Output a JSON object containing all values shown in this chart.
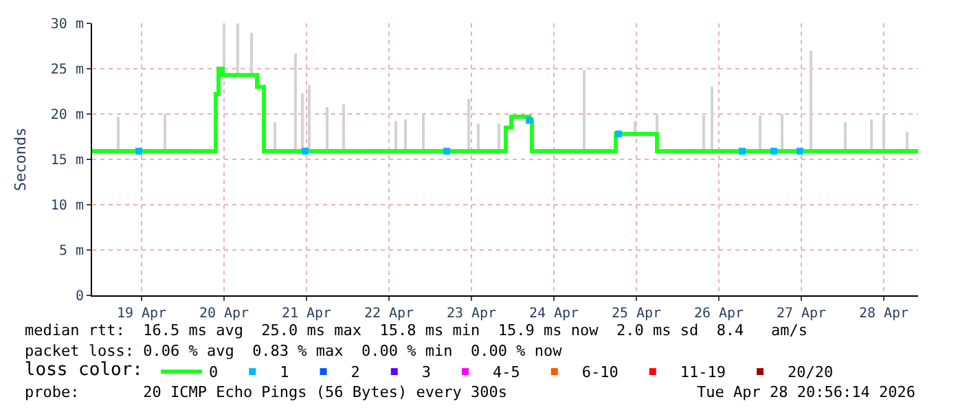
{
  "chart_data": {
    "type": "step",
    "ylabel": "Seconds",
    "legend_title": "loss color:",
    "legend": "bottom",
    "grid": true,
    "line_style": "solid",
    "marker": "none",
    "xlim": [
      "2026-04-18T21:36",
      "2026-04-28T22:00"
    ],
    "xticks": [
      {
        "value": "2026-04-19T12:00",
        "label": "19 Apr"
      },
      {
        "value": "2026-04-20T12:00",
        "label": "20 Apr"
      },
      {
        "value": "2026-04-21T12:00",
        "label": "21 Apr"
      },
      {
        "value": "2026-04-22T12:00",
        "label": "22 Apr"
      },
      {
        "value": "2026-04-23T12:00",
        "label": "23 Apr"
      },
      {
        "value": "2026-04-24T12:00",
        "label": "24 Apr"
      },
      {
        "value": "2026-04-25T12:00",
        "label": "25 Apr"
      },
      {
        "value": "2026-04-26T12:00",
        "label": "26 Apr"
      },
      {
        "value": "2026-04-27T12:00",
        "label": "27 Apr"
      },
      {
        "value": "2026-04-28T12:00",
        "label": "28 Apr"
      }
    ],
    "ylim": [
      0,
      30
    ],
    "yticks": [
      0,
      {
        "value": 5,
        "label": "5 m"
      },
      {
        "value": 10,
        "label": "10 m"
      },
      {
        "value": 15,
        "label": "15 m"
      },
      {
        "value": 20,
        "label": "20 m"
      },
      {
        "value": 25,
        "label": "25 m"
      },
      {
        "value": 30,
        "label": "30 m"
      }
    ],
    "series": [
      {
        "type": "bar",
        "color": "#d3d3d3",
        "x": [
          "2026-04-19T05:12",
          "2026-04-19T18:48",
          "2026-04-20T12:00",
          "2026-04-20T16:00",
          "2026-04-20T20:00",
          "2026-04-21T02:48",
          "2026-04-21T08:48",
          "2026-04-21T10:48",
          "2026-04-21T12:48",
          "2026-04-21T18:00",
          "2026-04-21T22:48",
          "2026-04-22T14:00",
          "2026-04-22T16:48",
          "2026-04-22T22:00",
          "2026-04-23T11:12",
          "2026-04-23T14:00",
          "2026-04-23T20:00",
          "2026-04-24T20:48",
          "2026-04-25T11:36",
          "2026-04-25T18:00",
          "2026-04-26T07:36",
          "2026-04-26T10:00",
          "2026-04-27T00:00",
          "2026-04-27T06:24",
          "2026-04-27T14:48",
          "2026-04-28T00:48",
          "2026-04-28T08:24",
          "2026-04-28T12:00",
          "2026-04-28T18:48"
        ],
        "base": [
          15.9,
          15.9,
          24.3,
          24.3,
          24.3,
          15.9,
          15.9,
          15.9,
          15.9,
          15.9,
          15.9,
          15.9,
          15.9,
          15.9,
          15.9,
          15.9,
          15.9,
          15.9,
          17.8,
          15.9,
          15.9,
          15.9,
          15.9,
          15.9,
          15.9,
          15.9,
          15.9,
          15.9,
          15.9
        ],
        "values": [
          3.8,
          4.1,
          5.7,
          5.7,
          4.7,
          3.2,
          10.7,
          6.4,
          7.3,
          4.8,
          5.1,
          3.4,
          3.5,
          4.1,
          5.8,
          3.1,
          3.0,
          8.9,
          1.4,
          4.1,
          3.9,
          7.1,
          4.0,
          4.1,
          11.1,
          3.2,
          3.5,
          4.1,
          2.2
        ]
      },
      {
        "name": "0",
        "color": "#20ff20",
        "x": [
          "2026-04-18T21:36",
          "2026-04-20T09:36",
          "2026-04-20T10:24",
          "2026-04-20T11:36",
          "2026-04-20T21:36",
          "2026-04-20T23:36",
          "2026-04-23T22:00",
          "2026-04-23T23:36",
          "2026-04-24T04:48",
          "2026-04-24T05:36",
          "2026-04-25T06:00",
          "2026-04-25T18:00",
          "2026-04-28T22:00"
        ],
        "values": [
          15.9,
          22.2,
          25.0,
          24.3,
          23.0,
          15.9,
          18.5,
          19.7,
          19.3,
          15.9,
          17.8,
          15.9,
          15.9
        ]
      },
      {
        "name": "1",
        "color": "#00b8ff",
        "type": "scatter",
        "marker": "square",
        "x": [
          "2026-04-19T11:12",
          "2026-04-21T11:36",
          "2026-04-23T04:48",
          "2026-04-24T04:48",
          "2026-04-25T06:48",
          "2026-04-26T18:48",
          "2026-04-27T04:00",
          "2026-04-27T11:36"
        ],
        "values": [
          15.9,
          15.9,
          15.9,
          19.3,
          17.8,
          15.9,
          15.9,
          15.9
        ]
      },
      {
        "name": "2",
        "color": "#0059ff",
        "type": "scatter",
        "marker": "square"
      },
      {
        "name": "3",
        "color": "#5e00ff",
        "type": "scatter",
        "marker": "square"
      },
      {
        "name": "4-5",
        "color": "#ff00ff",
        "type": "scatter",
        "marker": "square"
      },
      {
        "name": "6-10",
        "color": "#ff5500",
        "type": "scatter",
        "marker": "square"
      },
      {
        "name": "11-19",
        "color": "#ff0000",
        "type": "scatter",
        "marker": "square"
      },
      {
        "name": "20/20",
        "color": "#a10000",
        "type": "scatter",
        "marker": "square"
      }
    ],
    "annotations": [
      "median rtt:  16.5 ms avg  25.0 ms max  15.8 ms min  15.9 ms now  2.0 ms sd  8.4   am/s",
      "packet loss: 0.06 % avg  0.83 % max  0.00 % min  0.00 % now",
      "probe:       20 ICMP Echo Pings (56 Bytes) every 300s",
      "Tue Apr 28 20:56:14 2026"
    ]
  }
}
